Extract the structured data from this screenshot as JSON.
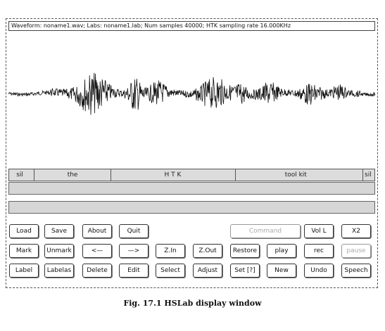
{
  "window": {
    "title": "Waveform: noname1.wav; Labs: noname1.lab; Num samples 40000; HTK sampling rate 16.000KHz"
  },
  "labels": [
    {
      "text": "sil",
      "start": 0.0,
      "end": 0.07
    },
    {
      "text": "the",
      "start": 0.07,
      "end": 0.28
    },
    {
      "text": "H T K",
      "start": 0.28,
      "end": 0.62
    },
    {
      "text": "tool kit",
      "start": 0.62,
      "end": 0.97
    },
    {
      "text": "sil",
      "start": 0.97,
      "end": 1.0
    }
  ],
  "buttons": {
    "row1": [
      {
        "id": "load",
        "label": "Load",
        "enabled": true
      },
      {
        "id": "save",
        "label": "Save",
        "enabled": true
      },
      {
        "id": "about",
        "label": "About",
        "enabled": true
      },
      {
        "id": "quit",
        "label": "Quit",
        "enabled": true
      },
      {
        "id": "command",
        "label": "Command",
        "enabled": false
      },
      {
        "id": "volume",
        "label": "Vol L",
        "enabled": true
      },
      {
        "id": "x2",
        "label": "X2",
        "enabled": true
      }
    ],
    "row2": [
      {
        "id": "mark",
        "label": "Mark",
        "enabled": true
      },
      {
        "id": "unmark",
        "label": "Unmark",
        "enabled": true
      },
      {
        "id": "scroll-left",
        "label": "<—",
        "enabled": true
      },
      {
        "id": "scroll-right",
        "label": "—>",
        "enabled": true
      },
      {
        "id": "zoom-in",
        "label": "Z.In",
        "enabled": true
      },
      {
        "id": "zoom-out",
        "label": "Z.Out",
        "enabled": true
      },
      {
        "id": "restore",
        "label": "Restore",
        "enabled": true
      },
      {
        "id": "play",
        "label": "play",
        "enabled": true
      },
      {
        "id": "rec",
        "label": "rec",
        "enabled": true
      },
      {
        "id": "pause",
        "label": "pause",
        "enabled": false
      }
    ],
    "row3": [
      {
        "id": "label",
        "label": "Label",
        "enabled": true
      },
      {
        "id": "labelas",
        "label": "Labelas",
        "enabled": true
      },
      {
        "id": "delete",
        "label": "Delete",
        "enabled": true
      },
      {
        "id": "edit",
        "label": "Edit",
        "enabled": true
      },
      {
        "id": "select",
        "label": "Select",
        "enabled": true
      },
      {
        "id": "adjust",
        "label": "Adjust",
        "enabled": true
      },
      {
        "id": "set",
        "label": "Set [?]",
        "enabled": true
      },
      {
        "id": "new",
        "label": "New",
        "enabled": true
      },
      {
        "id": "undo",
        "label": "Undo",
        "enabled": true
      },
      {
        "id": "speech",
        "label": "Speech",
        "enabled": true
      }
    ]
  },
  "caption": "Fig. 17.1  HSLab display window"
}
